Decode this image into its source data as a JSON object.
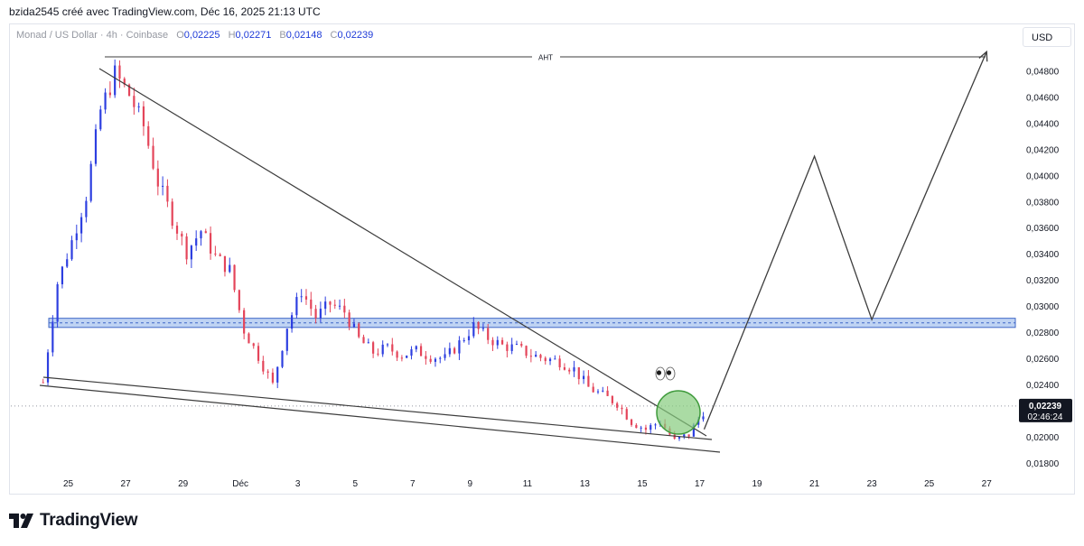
{
  "header": {
    "caption": "bzida2545 créé avec TradingView.com, Déc 16, 2025 21:13 UTC"
  },
  "symbol": {
    "name": "Monad / US Dollar · 4h · Coinbase",
    "open_key": "O",
    "open": "0,02225",
    "high_key": "H",
    "high": "0,02271",
    "low_key": "B",
    "low": "0,02148",
    "close_key": "C",
    "close": "0,02239"
  },
  "currency_button": "USD",
  "footer": {
    "brand": "TradingView"
  },
  "colors": {
    "up": "#2d3fe0",
    "down": "#e4455a",
    "line": "#3d3d3d",
    "zone_fill": "#a9c4ef",
    "zone_border": "#3f67c7",
    "circle_fill": "#86cc7d",
    "circle_border": "#3e9a3b",
    "price_label_bg": "#131722"
  },
  "chart_data": {
    "type": "candlestick",
    "x_ticks": [
      "25",
      "27",
      "29",
      "Déc",
      "3",
      "5",
      "7",
      "9",
      "11",
      "13",
      "15",
      "17",
      "19",
      "21",
      "23",
      "25",
      "27"
    ],
    "x_tick_dates": [
      "2025-11-25",
      "2025-11-27",
      "2025-11-29",
      "2025-12-01",
      "2025-12-03",
      "2025-12-05",
      "2025-12-07",
      "2025-12-09",
      "2025-12-11",
      "2025-12-13",
      "2025-12-15",
      "2025-12-17",
      "2025-12-19",
      "2025-12-21",
      "2025-12-23",
      "2025-12-25",
      "2025-12-27"
    ],
    "y_ticks": [
      "0,04800",
      "0,04600",
      "0,04400",
      "0,04200",
      "0,04000",
      "0,03800",
      "0,03600",
      "0,03400",
      "0,03200",
      "0,03000",
      "0,02800",
      "0,02600",
      "0,02400",
      "0,02000",
      "0,01800"
    ],
    "y_tick_values": [
      0.048,
      0.046,
      0.044,
      0.042,
      0.04,
      0.038,
      0.036,
      0.034,
      0.032,
      0.03,
      0.028,
      0.026,
      0.024,
      0.02,
      0.018
    ],
    "ylim": [
      0.0172,
      0.05
    ],
    "xlim": [
      "2025-11-23",
      "2025-12-28"
    ],
    "current_price": {
      "value": 0.02239,
      "label": "0,02239",
      "countdown": "02:46:24"
    },
    "close_path": [
      [
        "2025-11-24",
        0.0242
      ],
      [
        "2025-11-24",
        0.0318
      ],
      [
        "2025-11-25",
        0.035
      ],
      [
        "2025-11-25",
        0.0385
      ],
      [
        "2025-11-26",
        0.045
      ],
      [
        "2025-11-26",
        0.0478
      ],
      [
        "2025-11-27",
        0.0462
      ],
      [
        "2025-11-27",
        0.0438
      ],
      [
        "2025-11-28",
        0.0395
      ],
      [
        "2025-11-28",
        0.0368
      ],
      [
        "2025-11-29",
        0.0342
      ],
      [
        "2025-11-29",
        0.0358
      ],
      [
        "2025-11-30",
        0.0338
      ],
      [
        "2025-11-30",
        0.0328
      ],
      [
        "2025-12-01",
        0.0282
      ],
      [
        "2025-12-01",
        0.0262
      ],
      [
        "2025-12-02",
        0.024
      ],
      [
        "2025-12-02",
        0.0285
      ],
      [
        "2025-12-03",
        0.0312
      ],
      [
        "2025-12-03",
        0.0292
      ],
      [
        "2025-12-04",
        0.0302
      ],
      [
        "2025-12-04",
        0.0296
      ],
      [
        "2025-12-05",
        0.0275
      ],
      [
        "2025-12-05",
        0.0265
      ],
      [
        "2025-12-06",
        0.0268
      ],
      [
        "2025-12-06",
        0.0263
      ],
      [
        "2025-12-07",
        0.0266
      ],
      [
        "2025-12-07",
        0.0262
      ],
      [
        "2025-12-08",
        0.026
      ],
      [
        "2025-12-08",
        0.0272
      ],
      [
        "2025-12-09",
        0.0285
      ],
      [
        "2025-12-09",
        0.0276
      ],
      [
        "2025-12-10",
        0.027
      ],
      [
        "2025-12-10",
        0.0268
      ],
      [
        "2025-12-11",
        0.0263
      ],
      [
        "2025-12-11",
        0.026
      ],
      [
        "2025-12-12",
        0.0258
      ],
      [
        "2025-12-12",
        0.0252
      ],
      [
        "2025-12-13",
        0.0238
      ],
      [
        "2025-12-13",
        0.0232
      ],
      [
        "2025-12-14",
        0.0226
      ],
      [
        "2025-12-14",
        0.0212
      ],
      [
        "2025-12-15",
        0.0206
      ],
      [
        "2025-12-15",
        0.0212
      ],
      [
        "2025-12-16",
        0.0197
      ],
      [
        "2025-12-16",
        0.0202
      ],
      [
        "2025-12-17",
        0.0224
      ]
    ],
    "annotations": {
      "horizontal_level_label": "AHT",
      "horizontal_level_value": 0.0491,
      "zone": {
        "from": 0.0284,
        "to": 0.0291
      },
      "projection_path": [
        [
          "2025-12-17",
          0.0206
        ],
        [
          "2025-12-21",
          0.0415
        ],
        [
          "2025-12-23",
          0.029
        ],
        [
          "2025-12-27",
          0.0495
        ]
      ]
    }
  }
}
